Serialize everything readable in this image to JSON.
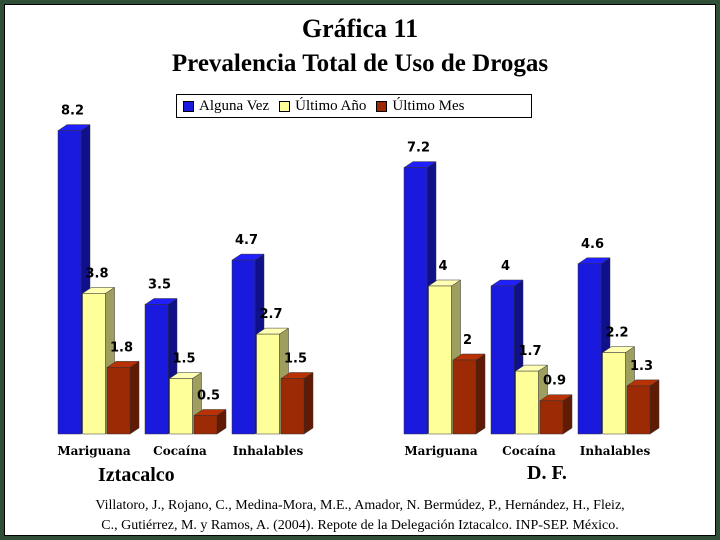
{
  "title_line1": "Gráfica 11",
  "title_line2": "Prevalencia Total de Uso de Drogas",
  "legend": [
    {
      "label": "Alguna Vez",
      "color": "#1a1adf"
    },
    {
      "label": "Último Año",
      "color": "#ffff99"
    },
    {
      "label": "Último Mes",
      "color": "#9c2a05"
    }
  ],
  "source_line1": "Villatoro, J., Rojano, C., Medina-Mora, M.E., Amador, N. Bermúdez, P., Hernández, H., Fleiz,",
  "source_line2": "C., Gutiérrez, M. y Ramos, A. (2004). Repote de la Delegación Iztacalco. INP-SEP. México.",
  "chart_data": [
    {
      "type": "bar",
      "title": "Iztacalco",
      "categories": [
        "Mariguana",
        "Cocaína",
        "Inhalables"
      ],
      "series": [
        {
          "name": "Alguna Vez",
          "values": [
            8.2,
            3.5,
            4.7
          ]
        },
        {
          "name": "Último Año",
          "values": [
            3.8,
            1.5,
            2.7
          ]
        },
        {
          "name": "Último Mes",
          "values": [
            1.8,
            0.5,
            1.5
          ]
        }
      ],
      "labels": [
        [
          "8.2",
          "3.8",
          "1.8"
        ],
        [
          "3.5",
          "1.5",
          "0.5"
        ],
        [
          "4.7",
          "2.7",
          "1.5"
        ]
      ],
      "ylim": [
        0,
        8.2
      ],
      "grid": false,
      "legend_position": "top"
    },
    {
      "type": "bar",
      "title": "D. F.",
      "categories": [
        "Mariguana",
        "Cocaína",
        "Inhalables"
      ],
      "series": [
        {
          "name": "Alguna Vez",
          "values": [
            7.2,
            4,
            4.6
          ]
        },
        {
          "name": "Último Año",
          "values": [
            4,
            1.7,
            2.2
          ]
        },
        {
          "name": "Último Mes",
          "values": [
            2,
            0.9,
            1.3
          ]
        }
      ],
      "labels": [
        [
          "7.2",
          "4",
          "2"
        ],
        [
          "4",
          "1.7",
          "0.9"
        ],
        [
          "4.6",
          "2.2",
          "1.3"
        ]
      ],
      "ylim": [
        0,
        8.2
      ],
      "grid": false,
      "legend_position": "top"
    }
  ]
}
